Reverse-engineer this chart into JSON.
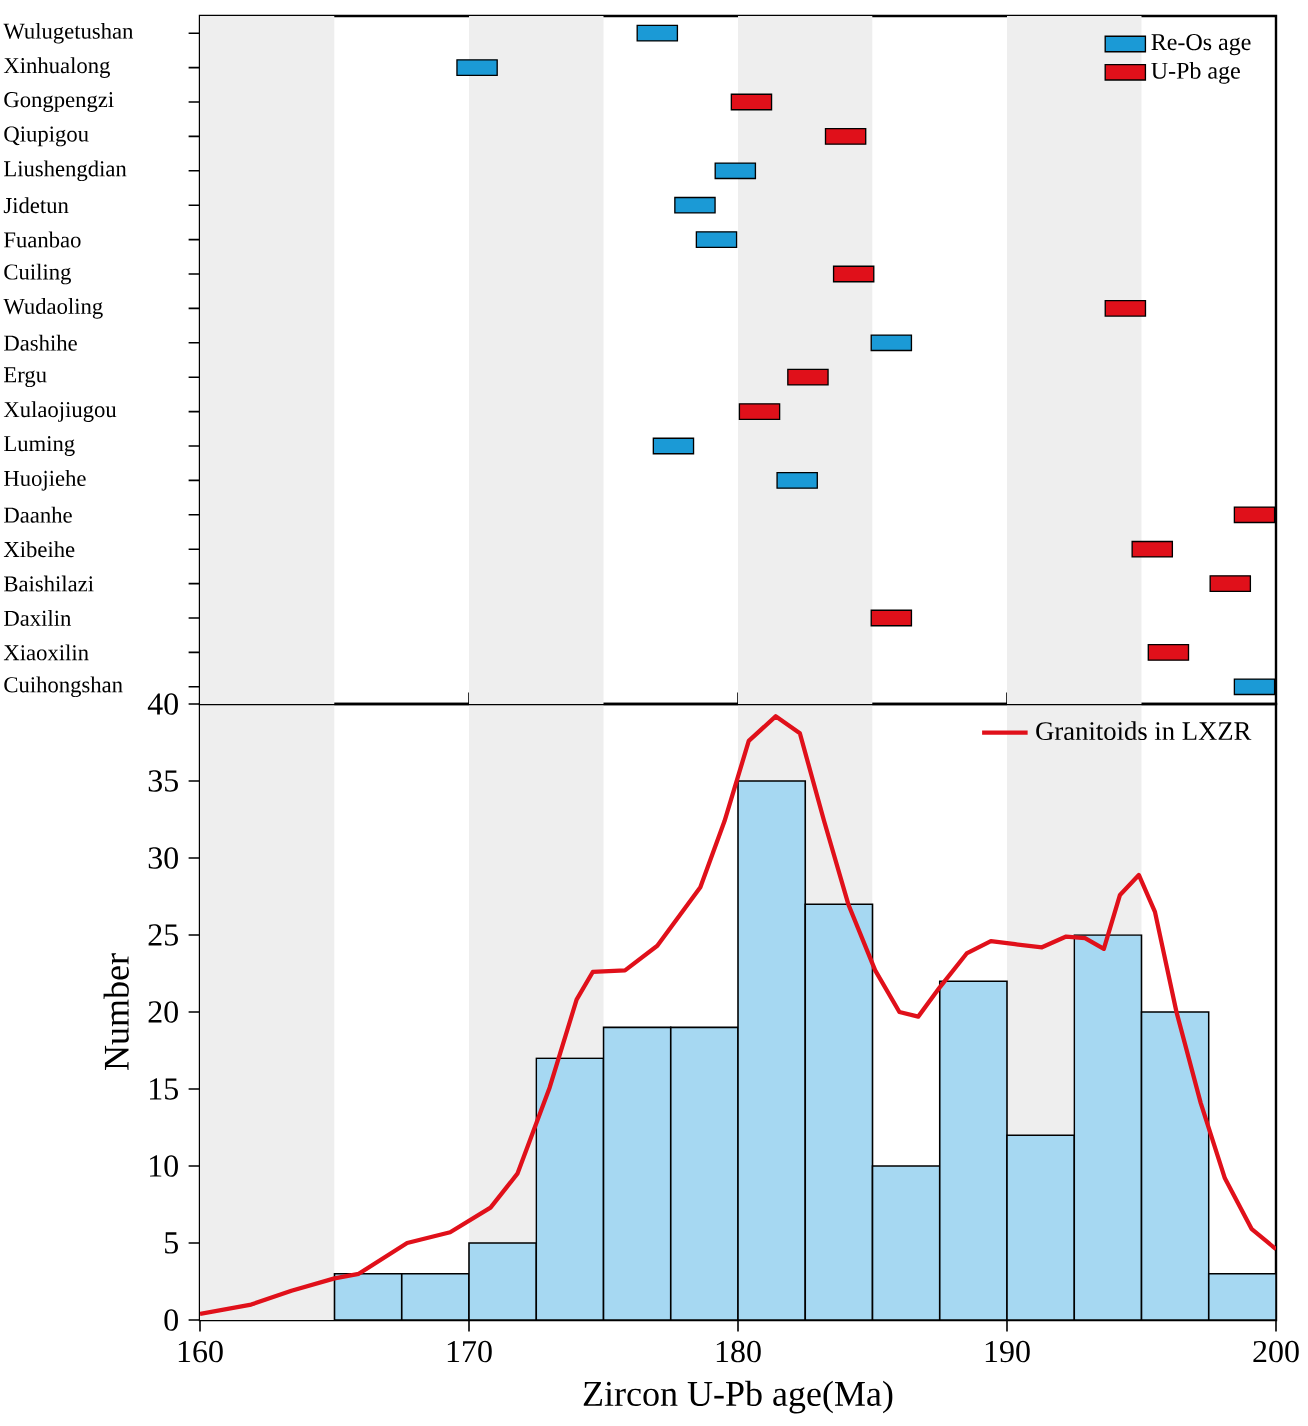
{
  "chart_data": [
    {
      "type": "scatter",
      "orientation": "horizontal",
      "marker": "square",
      "legend": "top right",
      "tick_labels": "y",
      "categories": [
        "Wulugetushan",
        "Xinhualong",
        "Gongpengzi",
        "Qiupigou",
        "Liushengdian",
        "Jidetun",
        "Fuanbao",
        "Cuiling",
        "Wudaoling",
        "Dashihe",
        "Ergu",
        "Xulaojiugou",
        "Luming",
        "Huojiehe",
        "Daanhe",
        "Xibeihe",
        "Baishilazi",
        "Daxilin",
        "Xiaoxilin",
        "Cuihongshan"
      ],
      "series": [
        {
          "name": "Re-Os age",
          "color": "#1b9ad6",
          "values": [
            177.0,
            170.3,
            null,
            null,
            179.9,
            178.4,
            179.2,
            null,
            null,
            185.7,
            null,
            null,
            177.6,
            182.2,
            null,
            null,
            null,
            null,
            null,
            199.2
          ]
        },
        {
          "name": "U-Pb age",
          "color": "#e0101a",
          "values": [
            null,
            null,
            180.5,
            184.0,
            null,
            null,
            null,
            184.3,
            194.4,
            null,
            182.6,
            180.8,
            null,
            null,
            199.2,
            195.4,
            198.3,
            185.7,
            196.0,
            null
          ]
        }
      ],
      "xlim": [
        160,
        200
      ],
      "xticks": [
        160,
        170,
        180,
        190,
        200
      ],
      "bands": [
        {
          "axis": "x",
          "from": 160,
          "to": 165,
          "color": "#eeeeee"
        },
        {
          "axis": "x",
          "from": 170,
          "to": 175,
          "color": "#eeeeee"
        },
        {
          "axis": "x",
          "from": 180,
          "to": 185,
          "color": "#eeeeee"
        },
        {
          "axis": "x",
          "from": 190,
          "to": 195,
          "color": "#eeeeee"
        }
      ]
    },
    {
      "type": "histogram",
      "xlabel": "Zircon U-Pb age(Ma)",
      "ylabel": "Number",
      "legend": "top right",
      "bins": [
        165,
        167.5,
        170,
        172.5,
        175,
        177.5,
        180,
        182.5,
        185,
        187.5,
        190,
        192.5,
        195,
        197.5,
        200
      ],
      "values": [
        3,
        3,
        5,
        17,
        19,
        19,
        35,
        27,
        10,
        22,
        12,
        25,
        20,
        3
      ],
      "color": "#a6d8f2",
      "series": [
        {
          "name": "Granitoids in LXZR",
          "type": "line",
          "color": "#e0101a",
          "x": [
            160,
            161.9,
            163.4,
            165,
            165.9,
            167.7,
            169.3,
            170.8,
            171.8,
            173,
            174,
            174.6,
            175.8,
            177,
            178.6,
            179.5,
            180.4,
            181.4,
            182.3,
            183.2,
            184.1,
            185.1,
            186,
            186.7,
            187.5,
            188.5,
            189.4,
            190.3,
            191.3,
            192.2,
            192.9,
            193.6,
            194.2,
            194.9,
            195.5,
            196.3,
            197.2,
            198.1,
            199.1,
            200
          ],
          "values": [
            0.4,
            1.0,
            1.9,
            2.7,
            3.0,
            5.0,
            5.7,
            7.3,
            9.5,
            15.1,
            20.8,
            22.6,
            22.7,
            24.3,
            28.1,
            32.4,
            37.6,
            39.2,
            38.1,
            32.4,
            27.0,
            22.7,
            20.0,
            19.7,
            21.6,
            23.8,
            24.6,
            24.4,
            24.2,
            24.9,
            24.8,
            24.1,
            27.6,
            28.9,
            26.5,
            20.0,
            14.1,
            9.2,
            5.9,
            4.6
          ]
        }
      ],
      "xlim": [
        160,
        200
      ],
      "ylim": [
        0,
        40
      ],
      "xticks": [
        160,
        170,
        180,
        190,
        200
      ],
      "yticks": [
        0,
        5,
        10,
        15,
        20,
        25,
        30,
        35,
        40
      ],
      "bands": [
        {
          "axis": "x",
          "from": 160,
          "to": 165,
          "color": "#eeeeee"
        },
        {
          "axis": "x",
          "from": 170,
          "to": 175,
          "color": "#eeeeee"
        },
        {
          "axis": "x",
          "from": 180,
          "to": 185,
          "color": "#eeeeee"
        },
        {
          "axis": "x",
          "from": 190,
          "to": 195,
          "color": "#eeeeee"
        }
      ]
    }
  ]
}
